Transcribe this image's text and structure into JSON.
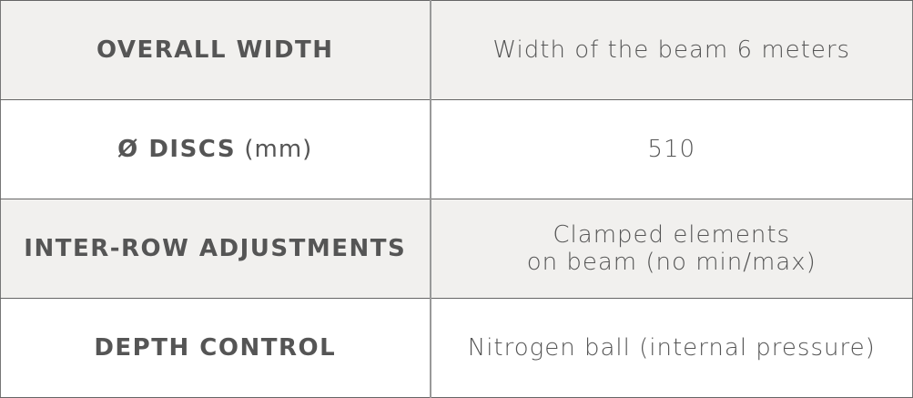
{
  "rows": [
    {
      "label": "OVERALL WIDTH",
      "unit": "",
      "value": "Width of the beam 6 meters",
      "value2": ""
    },
    {
      "label": "Ø DISCS",
      "unit": " (mm)",
      "value": "510",
      "value2": ""
    },
    {
      "label": "INTER-ROW ADJUSTMENTS",
      "unit": "",
      "value": "Clamped elements",
      "value2": "on beam (no min/max)"
    },
    {
      "label": "DEPTH CONTROL",
      "unit": "",
      "value": "Nitrogen ball (internal pressure)",
      "value2": ""
    }
  ]
}
